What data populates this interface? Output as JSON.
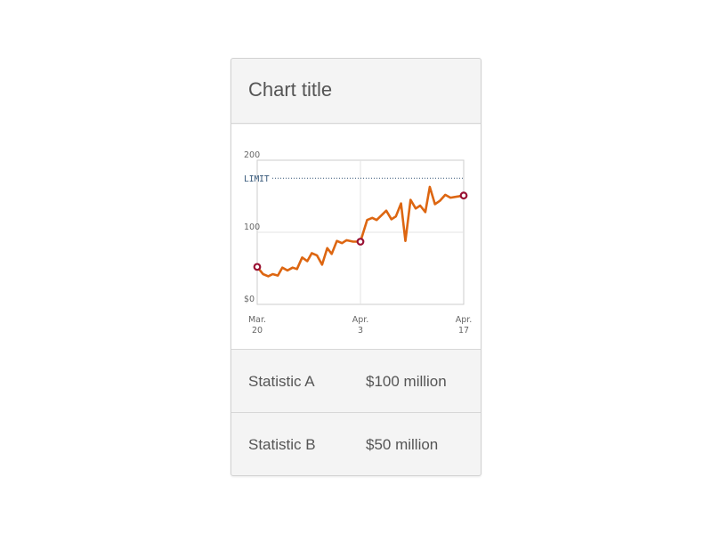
{
  "card": {
    "title": "Chart title"
  },
  "stats": [
    {
      "label": "Statistic A",
      "value": "$100 million"
    },
    {
      "label": "Statistic B",
      "value": "$50 million"
    }
  ],
  "colors": {
    "line": "#dd6611",
    "marker": "#991133",
    "limit": "#335577",
    "grid": "#e3e3e3",
    "plot_border": "#cccccc"
  },
  "chart_data": {
    "type": "line",
    "title": "",
    "xlabel": "",
    "ylabel": "",
    "ylim": [
      0,
      200
    ],
    "y_ticks": [
      {
        "value": 0,
        "label": "$0"
      },
      {
        "value": 100,
        "label": "100"
      },
      {
        "value": 200,
        "label": "200"
      }
    ],
    "x_ticks": [
      {
        "day": 0,
        "month": "Mar.",
        "date": "20"
      },
      {
        "day": 14,
        "month": "Apr.",
        "date": "3"
      },
      {
        "day": 28,
        "month": "Apr.",
        "date": "17"
      }
    ],
    "limit": {
      "label": "LIMIT",
      "value": 175
    },
    "grid": true,
    "series": [
      {
        "values": [
          [
            0,
            52
          ],
          [
            0.8,
            42
          ],
          [
            1.5,
            39
          ],
          [
            2.1,
            42
          ],
          [
            2.8,
            40
          ],
          [
            3.4,
            51
          ],
          [
            4.1,
            47
          ],
          [
            4.8,
            51
          ],
          [
            5.4,
            49
          ],
          [
            6.1,
            65
          ],
          [
            6.8,
            60
          ],
          [
            7.4,
            71
          ],
          [
            8.1,
            68
          ],
          [
            8.8,
            55
          ],
          [
            9.5,
            78
          ],
          [
            10.1,
            70
          ],
          [
            10.8,
            88
          ],
          [
            11.5,
            85
          ],
          [
            12.1,
            89
          ],
          [
            13.0,
            87
          ],
          [
            14.0,
            87
          ],
          [
            14.9,
            117
          ],
          [
            15.6,
            120
          ],
          [
            16.2,
            117
          ],
          [
            16.9,
            124
          ],
          [
            17.5,
            130
          ],
          [
            18.2,
            118
          ],
          [
            18.8,
            122
          ],
          [
            19.5,
            140
          ],
          [
            20.1,
            88
          ],
          [
            20.8,
            145
          ],
          [
            21.5,
            133
          ],
          [
            22.1,
            137
          ],
          [
            22.8,
            128
          ],
          [
            23.4,
            163
          ],
          [
            24.1,
            139
          ],
          [
            24.8,
            144
          ],
          [
            25.5,
            152
          ],
          [
            26.2,
            148
          ],
          [
            28.0,
            151
          ]
        ],
        "markers": [
          [
            0,
            52
          ],
          [
            14.0,
            87
          ],
          [
            28.0,
            151
          ]
        ]
      }
    ]
  }
}
